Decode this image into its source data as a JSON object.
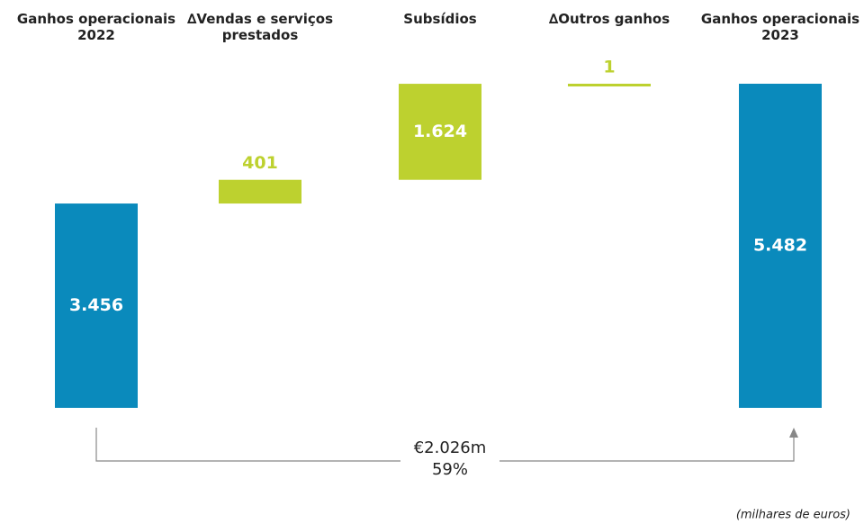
{
  "chart_data": {
    "type": "waterfall",
    "categories": [
      "Ganhos operacionais 2022",
      "∆Vendas e serviços prestados",
      "Subsídios",
      "∆Outros ganhos",
      "Ganhos operacionais 2023"
    ],
    "values": [
      3456,
      401,
      1624,
      1,
      5482
    ],
    "value_labels": [
      "3.456",
      "401",
      "1.624",
      "1",
      "5.482"
    ],
    "colors": [
      "#0a8abc",
      "#bdd12f",
      "#bdd12f",
      "#bdd12f",
      "#0a8abc"
    ],
    "annotations": [
      "€2.026m",
      "59%"
    ],
    "note": "(milhares de euros)"
  }
}
